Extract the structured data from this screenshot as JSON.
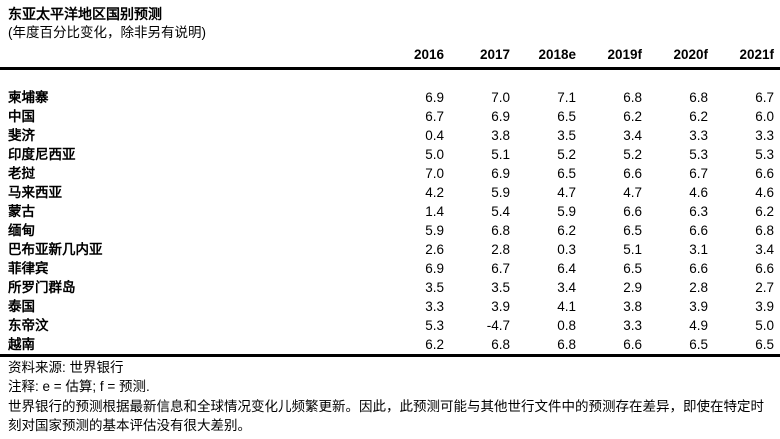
{
  "header": {
    "title": "东亚太平洋地区国别预测",
    "subtitle": "(年度百分比变化，除非另有说明)"
  },
  "table": {
    "columns": [
      "2016",
      "2017",
      "2018e",
      "2019f",
      "2020f",
      "2021f"
    ],
    "rows": [
      {
        "country": "柬埔寨",
        "values": [
          "6.9",
          "7.0",
          "7.1",
          "6.8",
          "6.8",
          "6.7"
        ]
      },
      {
        "country": "中国",
        "values": [
          "6.7",
          "6.9",
          "6.5",
          "6.2",
          "6.2",
          "6.0"
        ]
      },
      {
        "country": "斐济",
        "values": [
          "0.4",
          "3.8",
          "3.5",
          "3.4",
          "3.3",
          "3.3"
        ]
      },
      {
        "country": "印度尼西亚",
        "values": [
          "5.0",
          "5.1",
          "5.2",
          "5.2",
          "5.3",
          "5.3"
        ]
      },
      {
        "country": "老挝",
        "values": [
          "7.0",
          "6.9",
          "6.5",
          "6.6",
          "6.7",
          "6.6"
        ]
      },
      {
        "country": "马来西亚",
        "values": [
          "4.2",
          "5.9",
          "4.7",
          "4.7",
          "4.6",
          "4.6"
        ]
      },
      {
        "country": "蒙古",
        "values": [
          "1.4",
          "5.4",
          "5.9",
          "6.6",
          "6.3",
          "6.2"
        ]
      },
      {
        "country": "缅甸",
        "values": [
          "5.9",
          "6.8",
          "6.2",
          "6.5",
          "6.6",
          "6.8"
        ]
      },
      {
        "country": "巴布亚新几内亚",
        "values": [
          "2.6",
          "2.8",
          "0.3",
          "5.1",
          "3.1",
          "3.4"
        ]
      },
      {
        "country": "菲律宾",
        "values": [
          "6.9",
          "6.7",
          "6.4",
          "6.5",
          "6.6",
          "6.6"
        ]
      },
      {
        "country": "所罗门群岛",
        "values": [
          "3.5",
          "3.5",
          "3.4",
          "2.9",
          "2.8",
          "2.7"
        ]
      },
      {
        "country": "泰国",
        "values": [
          "3.3",
          "3.9",
          "4.1",
          "3.8",
          "3.9",
          "3.9"
        ]
      },
      {
        "country": "东帝汶",
        "values": [
          "5.3",
          "-4.7",
          "0.8",
          "3.3",
          "4.9",
          "5.0"
        ]
      },
      {
        "country": "越南",
        "values": [
          "6.2",
          "6.8",
          "6.8",
          "6.6",
          "6.5",
          "6.5"
        ]
      }
    ]
  },
  "footer": {
    "source": "资料来源: 世界银行",
    "note": "注释: e = 估算; f = 预测.",
    "disclaimer": "世界银行的预测根据最新信息和全球情况变化儿频繁更新。因此，此预测可能与其他世行文件中的预测存在差异，即使在特定时刻对国家预测的基本评估没有很大差别。"
  }
}
